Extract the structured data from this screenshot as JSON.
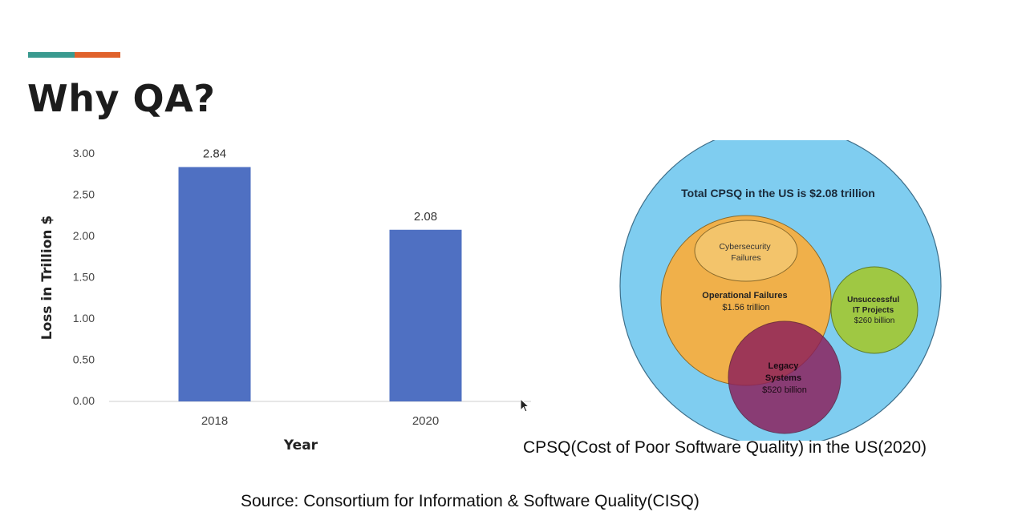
{
  "slide": {
    "title": "Why QA?",
    "accent_colors": [
      "#3a9a8f",
      "#e0622b"
    ],
    "caption": "CPSQ(Cost of Poor Software Quality) in the US(2020)",
    "source": "Source: Consortium for Information & Software Quality(CISQ)"
  },
  "chart_data": [
    {
      "type": "bar",
      "categories": [
        "2018",
        "2020"
      ],
      "values": [
        2.84,
        2.08
      ],
      "data_labels": [
        "2.84",
        "2.08"
      ],
      "xlabel": "Year",
      "ylabel": "Loss in Trillion $",
      "ylim": [
        0,
        3
      ],
      "yticks": [
        "0.00",
        "0.50",
        "1.00",
        "1.50",
        "2.00",
        "2.50",
        "3.00"
      ],
      "bar_color": "#4f70c2",
      "grid": false
    },
    {
      "type": "bubble",
      "title": "Total CPSQ in the US is $2.08 trillion",
      "outer_color": "#7fcdf0",
      "items": [
        {
          "lines": [
            "Cybersecurity",
            "Failures"
          ],
          "color": "#f3c46b"
        },
        {
          "lines": [
            "Operational Failures",
            "$1.56 trillion"
          ],
          "color": "#f0b04a"
        },
        {
          "lines": [
            "Unsuccessful",
            "IT Projects",
            "$260 billion"
          ],
          "color": "#9fc843"
        },
        {
          "lines": [
            "Legacy",
            "Systems",
            "$520 billion"
          ],
          "color": "#8c1d5a"
        }
      ]
    }
  ]
}
